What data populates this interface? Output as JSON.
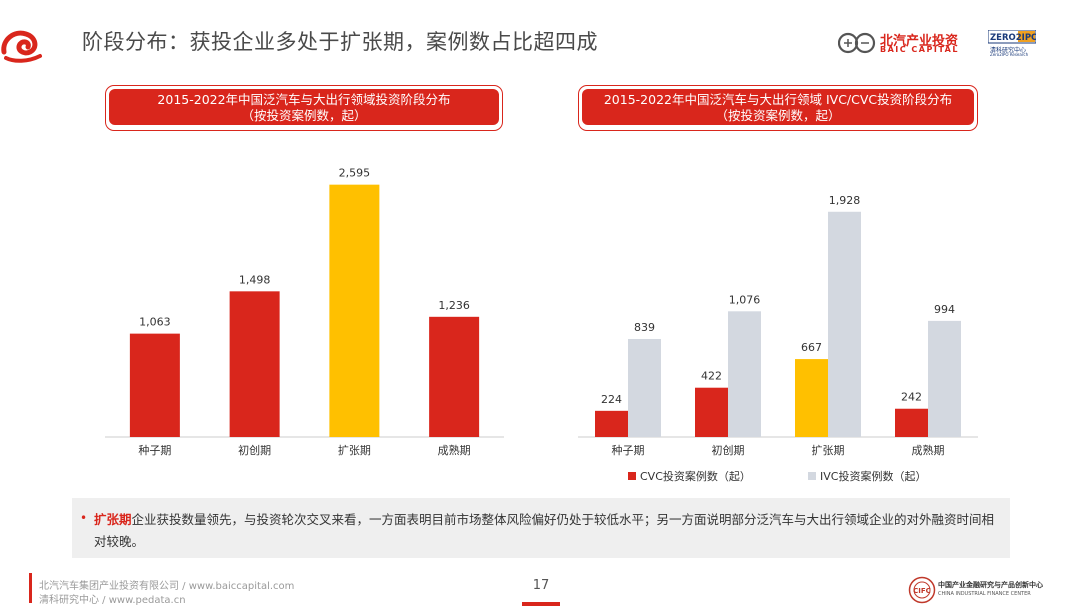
{
  "header": {
    "title": "阶段分布：获投企业多处于扩张期，案例数占比超四成",
    "baic_logo_cn": "北汽产业投资",
    "baic_logo_en": "BAIC CAPITAL",
    "zero_logo": "ZERO2IPO",
    "zero_logo_cn": "清科研究中心",
    "zero_logo_en": "Zero2IPO Research"
  },
  "chart_titles": {
    "left_line1": "2015-2022年中国泛汽车与大出行领域投资阶段分布",
    "left_line2": "（按投资案例数，起）",
    "right_line1": "2015-2022年中国泛汽车与大出行领域 IVC/CVC投资阶段分布",
    "right_line2": "（按投资案例数，起）"
  },
  "chart_data": [
    {
      "type": "bar",
      "title": "2015-2022年中国泛汽车与大出行领域投资阶段分布（按投资案例数，起）",
      "categories": [
        "种子期",
        "初创期",
        "扩张期",
        "成熟期"
      ],
      "values": [
        1063,
        1498,
        2595,
        1236
      ],
      "value_labels": [
        "1,063",
        "1,498",
        "2,595",
        "1,236"
      ],
      "highlight_index": 2,
      "ylim": [
        0,
        2900
      ],
      "grid": false
    },
    {
      "type": "bar",
      "title": "2015-2022年中国泛汽车与大出行领域 IVC/CVC投资阶段分布（按投资案例数，起）",
      "categories": [
        "种子期",
        "初创期",
        "扩张期",
        "成熟期"
      ],
      "series": [
        {
          "name": "CVC投资案例数（起）",
          "values": [
            224,
            422,
            667,
            242
          ],
          "labels": [
            "224",
            "422",
            "667",
            "242"
          ]
        },
        {
          "name": "IVC投资案例数（起）",
          "values": [
            839,
            1076,
            1928,
            994
          ],
          "labels": [
            "839",
            "1,076",
            "1,928",
            "994"
          ]
        }
      ],
      "highlight_index": 2,
      "legend_position": "bottom",
      "ylim": [
        0,
        2200
      ],
      "grid": false
    }
  ],
  "colors": {
    "red": "#d9261c",
    "yellow": "#ffc000",
    "gray": "#d3d8e0",
    "axis": "#cccccc"
  },
  "note": {
    "highlight": "扩张期",
    "text": "企业获投数量领先，与投资轮次交叉来看，一方面表明目前市场整体风险偏好仍处于较低水平；另一方面说明部分泛汽车与大出行领域企业的对外融资时间相对较晚。"
  },
  "footer": {
    "line1": "北汽汽车集团产业投资有限公司  / www.baiccapital.com",
    "line2": "清科研究中心 / www.pedata.cn",
    "page": "17",
    "cifc_cn": "中国产业金融研究与产品创新中心",
    "cifc_en": "CHINA INDUSTRIAL FINANCE CENTER"
  }
}
